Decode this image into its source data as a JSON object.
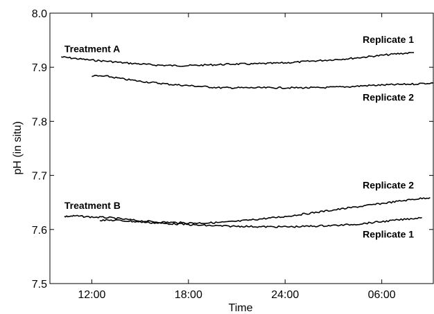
{
  "chart_data": {
    "type": "line",
    "title": "",
    "xlabel": "Time",
    "ylabel": "pH (in situ)",
    "xlim": [
      9.4,
      33.2
    ],
    "ylim": [
      7.5,
      8.0
    ],
    "x_ticks": [
      {
        "value": 12,
        "label": "12:00"
      },
      {
        "value": 18,
        "label": "18:00"
      },
      {
        "value": 24,
        "label": "24:00"
      },
      {
        "value": 30,
        "label": "06:00"
      }
    ],
    "y_ticks": [
      {
        "value": 7.5,
        "label": "7.5"
      },
      {
        "value": 7.6,
        "label": "7.6"
      },
      {
        "value": 7.7,
        "label": "7.7"
      },
      {
        "value": 7.8,
        "label": "7.8"
      },
      {
        "value": 7.9,
        "label": "7.9"
      },
      {
        "value": 8.0,
        "label": "8.0"
      }
    ],
    "grid": false,
    "legend": "none",
    "series": [
      {
        "group": "Treatment A",
        "replicate": "Replicate 1",
        "x": [
          10.1,
          11.0,
          12.0,
          13.0,
          14.0,
          15.0,
          16.0,
          17.0,
          18.0,
          19.0,
          20.0,
          21.0,
          22.0,
          23.0,
          24.0,
          25.0,
          26.0,
          27.0,
          28.0,
          29.0,
          30.0,
          31.0,
          32.0
        ],
        "y": [
          7.919,
          7.916,
          7.913,
          7.911,
          7.908,
          7.906,
          7.904,
          7.903,
          7.903,
          7.904,
          7.905,
          7.906,
          7.906,
          7.907,
          7.908,
          7.91,
          7.912,
          7.914,
          7.916,
          7.919,
          7.922,
          7.925,
          7.927
        ]
      },
      {
        "group": "Treatment A",
        "replicate": "Replicate 2",
        "x": [
          12.0,
          13.0,
          14.0,
          15.0,
          16.0,
          17.0,
          18.0,
          19.0,
          20.0,
          21.0,
          22.0,
          23.0,
          24.0,
          25.0,
          26.0,
          27.0,
          28.0,
          29.0,
          30.0,
          31.0,
          32.0,
          33.2
        ],
        "y": [
          7.884,
          7.883,
          7.878,
          7.874,
          7.871,
          7.868,
          7.866,
          7.864,
          7.862,
          7.862,
          7.862,
          7.862,
          7.862,
          7.862,
          7.862,
          7.863,
          7.864,
          7.866,
          7.867,
          7.868,
          7.869,
          7.871
        ]
      },
      {
        "group": "Treatment B",
        "replicate": "Replicate 2",
        "x": [
          10.3,
          11.0,
          12.0,
          13.0,
          14.0,
          15.0,
          16.0,
          17.0,
          18.0,
          19.0,
          20.0,
          21.0,
          22.0,
          23.0,
          24.0,
          25.0,
          26.0,
          27.0,
          28.0,
          29.0,
          30.0,
          31.0,
          32.0,
          33.0
        ],
        "y": [
          7.624,
          7.625,
          7.623,
          7.622,
          7.619,
          7.616,
          7.614,
          7.613,
          7.612,
          7.612,
          7.613,
          7.615,
          7.618,
          7.621,
          7.624,
          7.628,
          7.632,
          7.636,
          7.64,
          7.644,
          7.648,
          7.652,
          7.656,
          7.659
        ]
      },
      {
        "group": "Treatment B",
        "replicate": "Replicate 1",
        "x": [
          12.5,
          13.5,
          14.5,
          15.5,
          16.5,
          17.5,
          18.5,
          19.5,
          20.5,
          21.5,
          22.5,
          23.5,
          24.5,
          25.5,
          26.5,
          27.5,
          28.5,
          29.5,
          30.5,
          31.5,
          32.5
        ],
        "y": [
          7.617,
          7.617,
          7.615,
          7.613,
          7.611,
          7.61,
          7.608,
          7.607,
          7.606,
          7.606,
          7.605,
          7.605,
          7.605,
          7.606,
          7.607,
          7.608,
          7.61,
          7.613,
          7.616,
          7.619,
          7.622
        ]
      }
    ],
    "annotations": [
      {
        "text": "Treatment A",
        "x": 10.3,
        "y": 7.928,
        "anchor": "start"
      },
      {
        "text": "Replicate 1",
        "x": 32.0,
        "y": 7.945,
        "anchor": "end"
      },
      {
        "text": "Replicate 2",
        "x": 32.0,
        "y": 7.838,
        "anchor": "end"
      },
      {
        "text": "Treatment B",
        "x": 10.3,
        "y": 7.638,
        "anchor": "start"
      },
      {
        "text": "Replicate 2",
        "x": 32.0,
        "y": 7.676,
        "anchor": "end"
      },
      {
        "text": "Replicate 1",
        "x": 32.0,
        "y": 7.585,
        "anchor": "end"
      }
    ]
  }
}
